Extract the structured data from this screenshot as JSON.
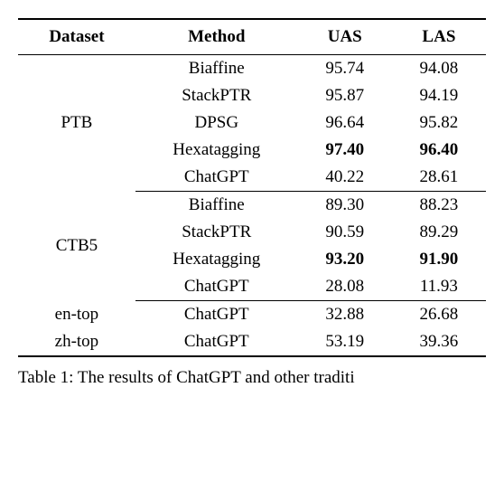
{
  "table": {
    "columns": [
      "Dataset",
      "Method",
      "UAS",
      "LAS"
    ],
    "groups": [
      {
        "dataset": "PTB",
        "rows": [
          {
            "method": "Biaffine",
            "uas": "95.74",
            "las": "94.08",
            "uas_bold": false,
            "las_bold": false
          },
          {
            "method": "StackPTR",
            "uas": "95.87",
            "las": "94.19",
            "uas_bold": false,
            "las_bold": false
          },
          {
            "method": "DPSG",
            "uas": "96.64",
            "las": "95.82",
            "uas_bold": false,
            "las_bold": false
          },
          {
            "method": "Hexatagging",
            "uas": "97.40",
            "las": "96.40",
            "uas_bold": true,
            "las_bold": true
          },
          {
            "method": "ChatGPT",
            "uas": "40.22",
            "las": "28.61",
            "uas_bold": false,
            "las_bold": false
          }
        ]
      },
      {
        "dataset": "CTB5",
        "rows": [
          {
            "method": "Biaffine",
            "uas": "89.30",
            "las": "88.23",
            "uas_bold": false,
            "las_bold": false
          },
          {
            "method": "StackPTR",
            "uas": "90.59",
            "las": "89.29",
            "uas_bold": false,
            "las_bold": false
          },
          {
            "method": "Hexatagging",
            "uas": "93.20",
            "las": "91.90",
            "uas_bold": true,
            "las_bold": true
          },
          {
            "method": "ChatGPT",
            "uas": "28.08",
            "las": "11.93",
            "uas_bold": false,
            "las_bold": false
          }
        ]
      },
      {
        "dataset": "en-top",
        "dataset2": "zh-top",
        "rows": [
          {
            "dataset_override": "en-top",
            "method": "ChatGPT",
            "uas": "32.88",
            "las": "26.68",
            "uas_bold": false,
            "las_bold": false
          },
          {
            "dataset_override": "zh-top",
            "method": "ChatGPT",
            "uas": "53.19",
            "las": "39.36",
            "uas_bold": false,
            "las_bold": false
          }
        ]
      }
    ],
    "caption_prefix": "Table 1: The results of ChatGPT and other traditi"
  },
  "styling": {
    "font_size": 19,
    "border_color": "#000000",
    "background_color": "#ffffff",
    "text_color": "#000000",
    "thick_border_width": 2,
    "thin_border_width": 1
  }
}
